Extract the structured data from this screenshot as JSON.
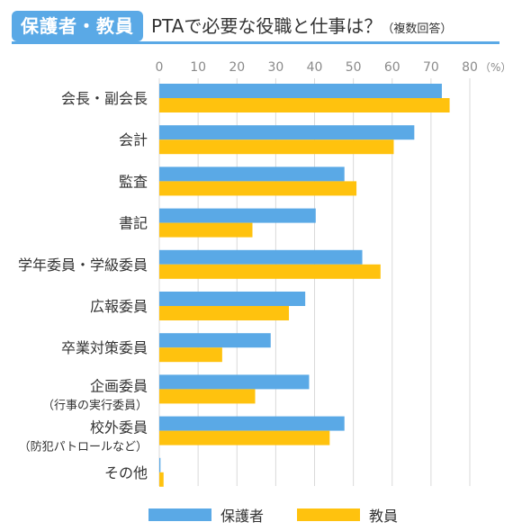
{
  "header": {
    "tag": "保護者・教員",
    "title": "PTAで必要な役職と仕事は？",
    "note": "（複数回答）"
  },
  "colors": {
    "parents": "#5aa9e6",
    "teachers": "#ffc20e",
    "accent": "#5aa9e6",
    "grid": "#d9d9d9",
    "text": "#333333"
  },
  "chart_data": {
    "type": "bar",
    "orientation": "horizontal",
    "categories": [
      [
        "会長・副会長"
      ],
      [
        "会計"
      ],
      [
        "監査"
      ],
      [
        "書記"
      ],
      [
        "学年委員・学級委員"
      ],
      [
        "広報委員"
      ],
      [
        "卒業対策委員"
      ],
      [
        "企画委員",
        "（行事の実行委員）"
      ],
      [
        "校外委員",
        "（防犯パトロールなど）"
      ],
      [
        "その他"
      ]
    ],
    "series": [
      {
        "name": "保護者",
        "values": [
          72.8,
          65.7,
          47.7,
          40.3,
          52.3,
          37.6,
          28.7,
          38.6,
          47.7,
          0.3
        ]
      },
      {
        "name": "教員",
        "values": [
          74.8,
          60.4,
          50.8,
          24.0,
          57.0,
          33.4,
          16.2,
          24.7,
          43.9,
          1.1
        ]
      }
    ],
    "xlim": [
      0,
      80
    ],
    "ticks": [
      0,
      10,
      20,
      30,
      40,
      50,
      60,
      70,
      80
    ],
    "unit": "（%）",
    "grid": true,
    "legend_position": "bottom"
  }
}
